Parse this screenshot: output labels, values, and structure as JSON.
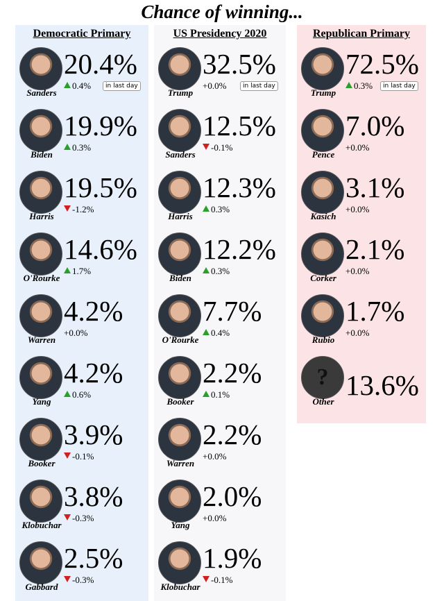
{
  "title": "Chance of winning...",
  "columns": [
    {
      "header": "Democratic Primary",
      "period": "in last day",
      "rows": [
        {
          "name": "Sanders",
          "percent": "20.4%",
          "change": "0.4%"
        },
        {
          "name": "Biden",
          "percent": "19.9%",
          "change": "0.3%"
        },
        {
          "name": "Harris",
          "percent": "19.5%",
          "change": "-1.2%"
        },
        {
          "name": "O'Rourke",
          "percent": "14.6%",
          "change": "1.7%"
        },
        {
          "name": "Warren",
          "percent": "4.2%",
          "change": "+0.0%"
        },
        {
          "name": "Yang",
          "percent": "4.2%",
          "change": "0.6%"
        },
        {
          "name": "Booker",
          "percent": "3.9%",
          "change": "-0.1%"
        },
        {
          "name": "Klobuchar",
          "percent": "3.8%",
          "change": "-0.3%"
        },
        {
          "name": "Gabbard",
          "percent": "2.5%",
          "change": "-0.3%"
        }
      ]
    },
    {
      "header": "US Presidency 2020",
      "period": "in last day",
      "rows": [
        {
          "name": "Trump",
          "percent": "32.5%",
          "change": "+0.0%"
        },
        {
          "name": "Sanders",
          "percent": "12.5%",
          "change": "-0.1%"
        },
        {
          "name": "Harris",
          "percent": "12.3%",
          "change": "0.3%"
        },
        {
          "name": "Biden",
          "percent": "12.2%",
          "change": "0.3%"
        },
        {
          "name": "O'Rourke",
          "percent": "7.7%",
          "change": "0.4%"
        },
        {
          "name": "Booker",
          "percent": "2.2%",
          "change": "0.1%"
        },
        {
          "name": "Warren",
          "percent": "2.2%",
          "change": "+0.0%"
        },
        {
          "name": "Yang",
          "percent": "2.0%",
          "change": "+0.0%"
        },
        {
          "name": "Klobuchar",
          "percent": "1.9%",
          "change": "-0.1%"
        }
      ]
    },
    {
      "header": "Republican Primary",
      "period": "in last day",
      "rows": [
        {
          "name": "Trump",
          "percent": "72.5%",
          "change": "0.3%"
        },
        {
          "name": "Pence",
          "percent": "7.0%",
          "change": "+0.0%"
        },
        {
          "name": "Kasich",
          "percent": "3.1%",
          "change": "+0.0%"
        },
        {
          "name": "Corker",
          "percent": "2.1%",
          "change": "+0.0%"
        },
        {
          "name": "Rubio",
          "percent": "1.7%",
          "change": "+0.0%"
        },
        {
          "name": "Other",
          "percent": "13.6%",
          "photo_text": "?"
        }
      ]
    }
  ]
}
